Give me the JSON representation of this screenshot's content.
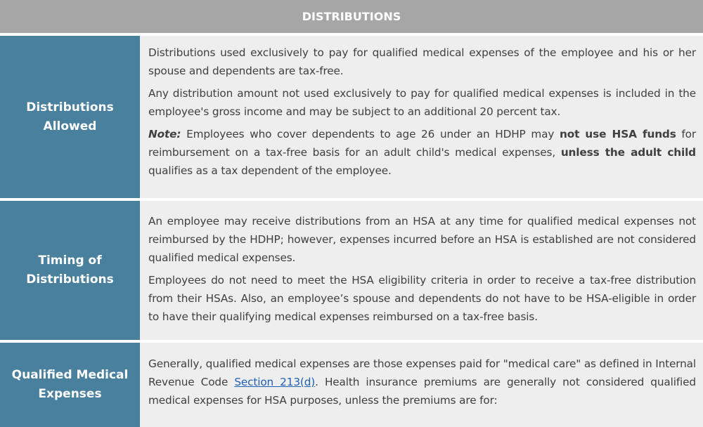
{
  "header": {
    "title": "DISTRIBUTIONS"
  },
  "rows": [
    {
      "label": "Distributions Allowed",
      "p1": "Distributions used exclusively to pay for qualified medical expenses of the employee and his or her spouse and dependents are tax-free.",
      "p2": "Any distribution amount not used exclusively to pay for qualified medical expenses is included in the employee's gross income and may be subject to an additional 20 percent tax.",
      "note_label": "Note:",
      "note_a": " Employees who cover dependents to age 26 under an HDHP may ",
      "note_b": "not use HSA funds",
      "note_c": " for reimbursement on a tax-free basis for an adult child's medical expenses, ",
      "note_d": "unless the adult child",
      "note_e": " qualifies as a tax dependent of the employee."
    },
    {
      "label": "Timing of Distributions",
      "p1": "An employee may receive distributions from an HSA at any time for qualified medical expenses not reimbursed by the HDHP; however, expenses incurred before an HSA is established are not considered qualified medical expenses.",
      "p2": "Employees do not need to meet the HSA eligibility criteria in order to receive a tax-free distribution from their HSAs. Also, an employee’s spouse and dependents do not have to be HSA-eligible in order to have their qualifying medical expenses reimbursed on a tax-free basis."
    },
    {
      "label": "Qualified Medical Expenses",
      "p1a": "Generally, qualified medical expenses are those expenses paid for \"medical care\" as defined in Internal Revenue Code ",
      "link": "Section 213(d)",
      "p1b": ". Health insurance premiums are generally not considered qualified medical expenses for HSA purposes, unless the premiums are for:"
    }
  ]
}
